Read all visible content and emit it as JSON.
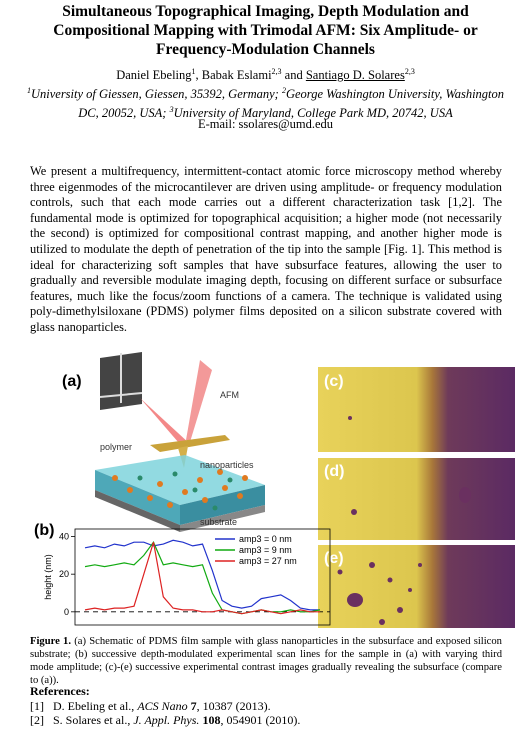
{
  "header": {
    "title": "Simultaneous Topographical Imaging, Depth Modulation and Compositional Mapping with Trimodal AFM: Six Amplitude- or Frequency-Modulation Channels",
    "authors": [
      {
        "name": "Daniel Ebeling",
        "affil": "1"
      },
      {
        "name": "Babak Eslami",
        "affil": "2,3"
      },
      {
        "name": "Santiago D. Solares",
        "affil": "2,3"
      }
    ],
    "separators": [
      ",",
      "and"
    ],
    "affiliations": [
      {
        "mark": "1",
        "text": "University of Giessen, Giessen, 35392, Germany;"
      },
      {
        "mark": "2",
        "text": "George Washington University, Washington DC, 20052, USA;"
      },
      {
        "mark": "3",
        "text": "University of Maryland, College Park MD, 20742, USA"
      }
    ],
    "email": "E-mail: ssolares@umd.edu"
  },
  "abstract": "We present a multifrequency, intermittent-contact atomic force microscopy method whereby three eigenmodes of the microcantilever are driven using amplitude- or frequency modulation controls, such that each mode carries out a different characterization task [1,2].  The fundamental mode is optimized for topographical acquisition; a higher mode (not necessarily the second) is optimized for compositional contrast mapping, and another higher mode is utilized to modulate the depth of penetration of the tip into the sample [Fig. 1].  This method is ideal for characterizing soft samples that have subsurface features, allowing the user to gradually and reversible modulate imaging depth, focusing on different surface or subsurface features, much like the focus/zoom functions of a camera.  The technique is validated using poly-dimethylsiloxane (PDMS) polymer films deposited on a silicon substrate covered with glass nanoparticles.",
  "figure": {
    "panels": [
      "(a)",
      "(b)",
      "(c)",
      "(d)",
      "(e)"
    ],
    "schematic_labels": [
      "AFM",
      "polymer",
      "nanoparticles",
      "substrate"
    ],
    "chart": {
      "type": "line",
      "y_label": "height (nm)",
      "ylim": [
        -7,
        44
      ],
      "yticks": [
        0,
        20,
        40
      ],
      "legend": "upper right",
      "series": [
        {
          "name": "amp3 = 0 nm",
          "color": "#2233cc",
          "values": [
            34,
            35,
            34,
            36,
            35,
            37,
            37,
            35,
            36,
            38,
            37,
            35,
            36,
            22,
            6,
            3,
            2,
            3,
            7,
            8,
            9,
            6,
            2,
            1,
            1
          ]
        },
        {
          "name": "amp3 = 9 nm",
          "color": "#11aa11",
          "values": [
            24,
            25,
            24,
            25,
            26,
            25,
            30,
            37,
            25,
            26,
            25,
            24,
            25,
            10,
            1,
            0,
            -1,
            0,
            1,
            0,
            0,
            1,
            0,
            0,
            1
          ]
        },
        {
          "name": "amp3 = 27 nm",
          "color": "#dd2222",
          "values": [
            1,
            2,
            1,
            2,
            2,
            3,
            20,
            37,
            8,
            2,
            1,
            1,
            0,
            0,
            1,
            0,
            -1,
            0,
            1,
            0,
            -1,
            0,
            1,
            0,
            0
          ]
        }
      ]
    },
    "caption_label": "Figure 1.",
    "caption": "(a) Schematic of PDMS film sample with glass nanoparticles in the subsurface and exposed silicon substrate; (b) successive depth-modulated experimental scan lines for the sample in (a) with varying third mode amplitude; (c)-(e) successive experimental contrast images gradually revealing the subsurface (compare to (a))."
  },
  "references": {
    "heading": "References:",
    "items": [
      {
        "label": "[1]",
        "authors": "D. Ebeling et al.,",
        "journal": "ACS Nano",
        "volume": "7",
        "rest": ", 10387 (2013)."
      },
      {
        "label": "[2]",
        "authors": "S. Solares et al.,",
        "journal": "J. Appl. Phys.",
        "volume": "108",
        "rest": ", 054901 (2010)."
      }
    ]
  }
}
